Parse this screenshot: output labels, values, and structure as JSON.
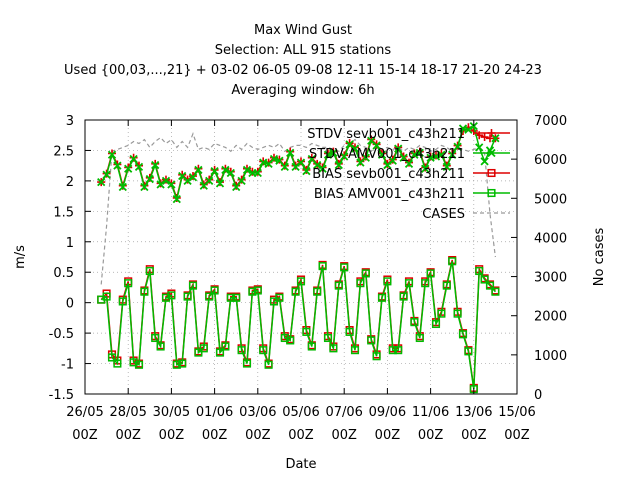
{
  "chart_data": {
    "type": "line",
    "title_lines": [
      "Max Wind Gust",
      "Selection: ALL    915 stations",
      "Used {00,03,...,21} + 03-02 06-05 09-08 12-11 15-14 18-17 21-20 24-23",
      "Averaging window:  6h"
    ],
    "xlabel": "Date",
    "ylabel": "m/s",
    "y2label": "No cases",
    "xlim": [
      0,
      20
    ],
    "ylim": [
      -1.5,
      3
    ],
    "y2lim": [
      0,
      7000
    ],
    "x_ticks": [
      {
        "x": 0,
        "top": "26/05",
        "bottom": "00Z"
      },
      {
        "x": 2,
        "top": "28/05",
        "bottom": "00Z"
      },
      {
        "x": 4,
        "top": "30/05",
        "bottom": "00Z"
      },
      {
        "x": 6,
        "top": "01/06",
        "bottom": "00Z"
      },
      {
        "x": 8,
        "top": "03/06",
        "bottom": "00Z"
      },
      {
        "x": 10,
        "top": "05/06",
        "bottom": "00Z"
      },
      {
        "x": 12,
        "top": "07/06",
        "bottom": "00Z"
      },
      {
        "x": 14,
        "top": "09/06",
        "bottom": "00Z"
      },
      {
        "x": 16,
        "top": "11/06",
        "bottom": "00Z"
      },
      {
        "x": 18,
        "top": "13/06",
        "bottom": "00Z"
      },
      {
        "x": 20,
        "top": "15/06",
        "bottom": "00Z"
      }
    ],
    "y_ticks": [
      -1.5,
      -1,
      -0.5,
      0,
      0.5,
      1,
      1.5,
      2,
      2.5,
      3
    ],
    "y_tick_labels": [
      "-1.5",
      "-1",
      "-0.5",
      "0",
      "0.5",
      "1",
      "1.5",
      "2",
      "2.5",
      "3"
    ],
    "y2_ticks": [
      0,
      1000,
      2000,
      3000,
      4000,
      5000,
      6000,
      7000
    ],
    "y2_tick_labels": [
      "0",
      "1000",
      "2000",
      "3000",
      "4000",
      "5000",
      "6000",
      "7000"
    ],
    "legend_position": "top-right",
    "x_units_note": "days since 26/05 00Z",
    "series": [
      {
        "name": "STDV sevb001_c43h211",
        "axis": "y",
        "color": "#dd0000",
        "marker": "plus",
        "style": "solid",
        "x": [
          0.75,
          1,
          1.25,
          1.5,
          1.75,
          2,
          2.25,
          2.5,
          2.75,
          3,
          3.25,
          3.5,
          3.75,
          4,
          4.25,
          4.5,
          4.75,
          5,
          5.25,
          5.5,
          5.75,
          6,
          6.25,
          6.5,
          6.75,
          7,
          7.25,
          7.5,
          7.75,
          8,
          8.25,
          8.5,
          8.75,
          9,
          9.25,
          9.5,
          9.75,
          10,
          10.25,
          10.5,
          10.75,
          11,
          11.25,
          11.5,
          11.75,
          12,
          12.25,
          12.5,
          12.75,
          13,
          13.25,
          13.5,
          13.75,
          14,
          14.25,
          14.5,
          14.75,
          15,
          15.25,
          15.5,
          15.75,
          16,
          16.25,
          16.5,
          16.75,
          17,
          17.25,
          17.5,
          17.75,
          18,
          18.25,
          18.5,
          18.75,
          19
        ],
        "values": [
          1.98,
          2.12,
          2.45,
          2.27,
          1.92,
          2.22,
          2.38,
          2.25,
          1.92,
          2.05,
          2.28,
          1.96,
          2.02,
          1.96,
          1.72,
          2.1,
          2.02,
          2.08,
          2.2,
          1.94,
          2.02,
          2.18,
          1.98,
          2.2,
          2.15,
          1.92,
          2.02,
          2.2,
          2.15,
          2.15,
          2.32,
          2.3,
          2.38,
          2.35,
          2.25,
          2.48,
          2.25,
          2.32,
          2.18,
          2.38,
          2.28,
          2.22,
          2.45,
          2.48,
          2.28,
          2.42,
          2.62,
          2.55,
          2.32,
          2.4,
          2.68,
          2.6,
          2.45,
          2.28,
          2.35,
          2.55,
          2.4,
          2.3,
          2.45,
          2.48,
          2.22,
          2.4,
          2.42,
          2.45,
          2.25,
          2.45,
          2.58,
          2.82,
          2.88,
          2.82,
          2.75,
          2.72,
          2.7,
          2.7
        ]
      },
      {
        "name": "STDV AMV001_c43h211",
        "axis": "y",
        "color": "#00bb00",
        "marker": "cross",
        "style": "solid",
        "x": [
          0.75,
          1,
          1.25,
          1.5,
          1.75,
          2,
          2.25,
          2.5,
          2.75,
          3,
          3.25,
          3.5,
          3.75,
          4,
          4.25,
          4.5,
          4.75,
          5,
          5.25,
          5.5,
          5.75,
          6,
          6.25,
          6.5,
          6.75,
          7,
          7.25,
          7.5,
          7.75,
          8,
          8.25,
          8.5,
          8.75,
          9,
          9.25,
          9.5,
          9.75,
          10,
          10.25,
          10.5,
          10.75,
          11,
          11.25,
          11.5,
          11.75,
          12,
          12.25,
          12.5,
          12.75,
          13,
          13.25,
          13.5,
          13.75,
          14,
          14.25,
          14.5,
          14.75,
          15,
          15.25,
          15.5,
          15.75,
          16,
          16.25,
          16.5,
          16.75,
          17,
          17.25,
          17.5,
          17.75,
          18,
          18.25,
          18.5,
          18.75,
          19
        ],
        "values": [
          1.98,
          2.1,
          2.43,
          2.25,
          1.9,
          2.2,
          2.36,
          2.23,
          1.9,
          2.03,
          2.26,
          1.94,
          2,
          1.94,
          1.7,
          2.08,
          2,
          2.06,
          2.18,
          1.92,
          2,
          2.16,
          1.96,
          2.18,
          2.13,
          1.9,
          2,
          2.18,
          2.13,
          2.13,
          2.3,
          2.28,
          2.36,
          2.33,
          2.23,
          2.46,
          2.23,
          2.3,
          2.16,
          2.36,
          2.26,
          2.2,
          2.43,
          2.46,
          2.26,
          2.4,
          2.6,
          2.53,
          2.3,
          2.38,
          2.66,
          2.58,
          2.43,
          2.26,
          2.33,
          2.53,
          2.38,
          2.28,
          2.43,
          2.46,
          2.2,
          2.38,
          2.4,
          2.43,
          2.23,
          2.43,
          2.56,
          2.86,
          2.84,
          2.9,
          2.55,
          2.32,
          2.5,
          2.7
        ]
      },
      {
        "name": "BIAS sevb001_c43h211",
        "axis": "y",
        "color": "#dd0000",
        "marker": "square",
        "style": "solid",
        "x": [
          0.75,
          1,
          1.25,
          1.5,
          1.75,
          2,
          2.25,
          2.5,
          2.75,
          3,
          3.25,
          3.5,
          3.75,
          4,
          4.25,
          4.5,
          4.75,
          5,
          5.25,
          5.5,
          5.75,
          6,
          6.25,
          6.5,
          6.75,
          7,
          7.25,
          7.5,
          7.75,
          8,
          8.25,
          8.5,
          8.75,
          9,
          9.25,
          9.5,
          9.75,
          10,
          10.25,
          10.5,
          10.75,
          11,
          11.25,
          11.5,
          11.75,
          12,
          12.25,
          12.5,
          12.75,
          13,
          13.25,
          13.5,
          13.75,
          14,
          14.25,
          14.5,
          14.75,
          15,
          15.25,
          15.5,
          15.75,
          16,
          16.25,
          16.5,
          16.75,
          17,
          17.25,
          17.5,
          17.75,
          18,
          18.25,
          18.5,
          18.75,
          19
        ],
        "values": [
          0.05,
          0.15,
          -0.85,
          -0.95,
          0.05,
          0.35,
          -0.95,
          -1.0,
          0.2,
          0.55,
          -0.55,
          -0.7,
          0.1,
          0.15,
          -1.0,
          -0.98,
          0.12,
          0.3,
          -0.8,
          -0.72,
          0.12,
          0.22,
          -0.8,
          -0.7,
          0.1,
          0.1,
          -0.75,
          -0.98,
          0.2,
          0.22,
          -0.75,
          -1.0,
          0.05,
          0.1,
          -0.55,
          -0.6,
          0.2,
          0.38,
          -0.45,
          -0.7,
          0.2,
          0.62,
          -0.55,
          -0.72,
          0.3,
          0.6,
          -0.45,
          -0.75,
          0.35,
          0.5,
          -0.6,
          -0.85,
          0.1,
          0.38,
          -0.75,
          -0.75,
          0.12,
          0.35,
          -0.3,
          -0.55,
          0.35,
          0.5,
          -0.32,
          -0.15,
          0.3,
          0.7,
          -0.15,
          -0.5,
          -0.78,
          -1.4,
          0.55,
          0.4,
          0.3,
          0.2
        ]
      },
      {
        "name": "BIAS AMV001_c43h211",
        "axis": "y",
        "color": "#00bb00",
        "marker": "square",
        "style": "solid",
        "x": [
          0.75,
          1,
          1.25,
          1.5,
          1.75,
          2,
          2.25,
          2.5,
          2.75,
          3,
          3.25,
          3.5,
          3.75,
          4,
          4.25,
          4.5,
          4.75,
          5,
          5.25,
          5.5,
          5.75,
          6,
          6.25,
          6.5,
          6.75,
          7,
          7.25,
          7.5,
          7.75,
          8,
          8.25,
          8.5,
          8.75,
          9,
          9.25,
          9.5,
          9.75,
          10,
          10.25,
          10.5,
          10.75,
          11,
          11.25,
          11.5,
          11.75,
          12,
          12.25,
          12.5,
          12.75,
          13,
          13.25,
          13.5,
          13.75,
          14,
          14.25,
          14.5,
          14.75,
          15,
          15.25,
          15.5,
          15.75,
          16,
          16.25,
          16.5,
          16.75,
          17,
          17.25,
          17.5,
          17.75,
          18,
          18.25,
          18.5,
          18.75,
          19
        ],
        "values": [
          0.05,
          0.1,
          -0.9,
          -1.0,
          0.02,
          0.32,
          -0.98,
          -1.02,
          0.18,
          0.52,
          -0.58,
          -0.72,
          0.08,
          0.12,
          -1.02,
          -1.0,
          0.1,
          0.28,
          -0.82,
          -0.75,
          0.1,
          0.2,
          -0.82,
          -0.72,
          0.08,
          0.08,
          -0.78,
          -1.0,
          0.18,
          0.2,
          -0.78,
          -1.02,
          0.02,
          0.08,
          -0.58,
          -0.62,
          0.18,
          0.35,
          -0.48,
          -0.72,
          0.18,
          0.6,
          -0.58,
          -0.75,
          0.28,
          0.58,
          -0.48,
          -0.78,
          0.32,
          0.48,
          -0.62,
          -0.88,
          0.08,
          0.35,
          -0.78,
          -0.78,
          0.1,
          0.32,
          -0.32,
          -0.58,
          0.32,
          0.48,
          -0.35,
          -0.18,
          0.28,
          0.68,
          -0.18,
          -0.52,
          -0.8,
          -1.42,
          0.52,
          0.38,
          0.28,
          0.18
        ]
      },
      {
        "name": "CASES",
        "axis": "y2",
        "color": "#999999",
        "marker": "none",
        "style": "dashed",
        "x": [
          0.75,
          1,
          1.25,
          1.5,
          1.75,
          2,
          2.25,
          2.5,
          2.75,
          3,
          3.25,
          3.5,
          3.75,
          4,
          4.25,
          4.5,
          4.75,
          5,
          5.25,
          5.5,
          5.75,
          6,
          6.25,
          6.5,
          6.75,
          7,
          7.25,
          7.5,
          7.75,
          8,
          8.25,
          8.5,
          8.75,
          9,
          9.25,
          9.5,
          9.75,
          10,
          10.25,
          10.5,
          10.75,
          11,
          11.25,
          11.5,
          11.75,
          12,
          12.25,
          12.5,
          12.75,
          13,
          13.25,
          13.5,
          13.75,
          14,
          14.25,
          14.5,
          14.75,
          15,
          15.25,
          15.5,
          15.75,
          16,
          16.25,
          16.5,
          16.75,
          17,
          17.25,
          17.5,
          17.75,
          18,
          18.25,
          18.5,
          18.75,
          19
        ],
        "values": [
          2800,
          4300,
          6200,
          6250,
          6300,
          6350,
          6450,
          6400,
          6500,
          6300,
          6450,
          6550,
          6400,
          6500,
          6300,
          6450,
          6300,
          6650,
          6250,
          6300,
          6250,
          6400,
          6350,
          6300,
          6200,
          6350,
          6250,
          6400,
          6300,
          6250,
          6300,
          6350,
          6300,
          6400,
          6200,
          6300,
          6350,
          6350,
          6300,
          6400,
          6350,
          6300,
          6300,
          6250,
          6200,
          6350,
          6400,
          6500,
          6350,
          6300,
          6200,
          6350,
          6250,
          6300,
          6250,
          6300,
          6200,
          6300,
          6250,
          6350,
          6300,
          6200,
          6250,
          6350,
          6300,
          6200,
          6300,
          6250,
          6200,
          6250,
          6300,
          6150,
          4600,
          3500
        ]
      }
    ]
  }
}
